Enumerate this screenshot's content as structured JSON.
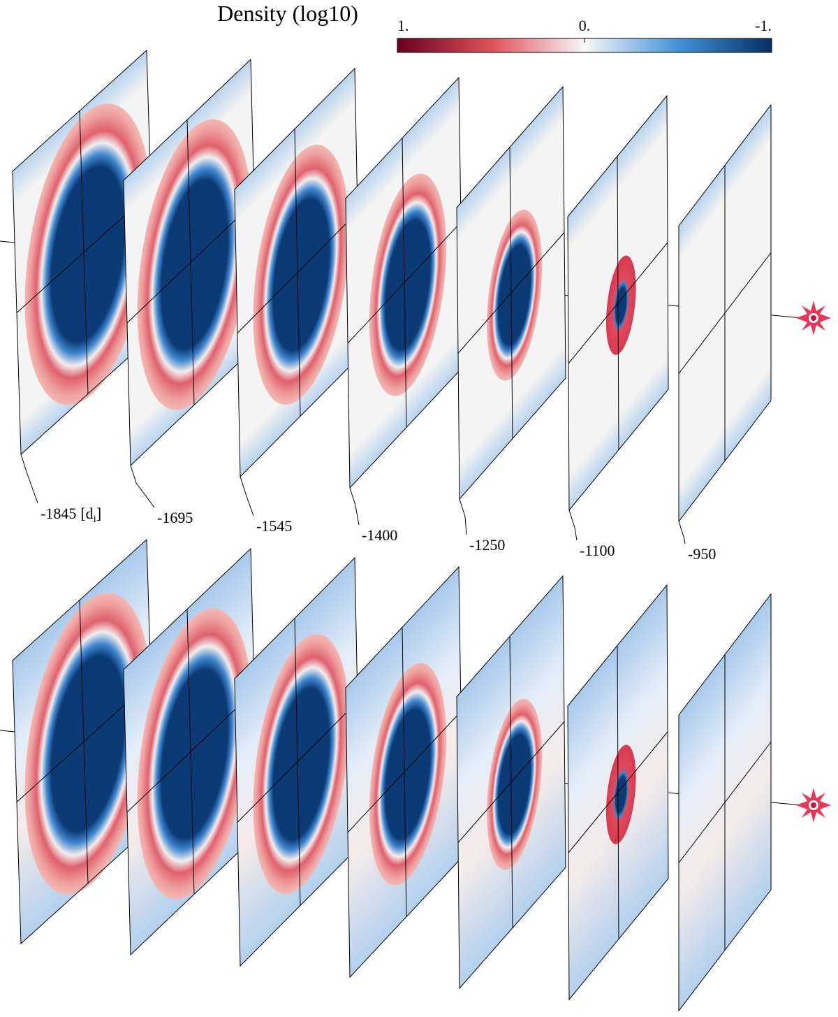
{
  "title": "Density (log10)",
  "colorbar": {
    "lim": [
      1,
      -1
    ],
    "ticks": [
      {
        "value": 1,
        "label": "1."
      },
      {
        "value": 0,
        "label": "0."
      },
      {
        "value": -1,
        "label": "-1."
      }
    ]
  },
  "slices": [
    -1845,
    -1695,
    -1545,
    -1400,
    -1250,
    -1100,
    -950
  ],
  "unit": {
    "open": "[d",
    "sub": "i",
    "close": "]"
  }
}
